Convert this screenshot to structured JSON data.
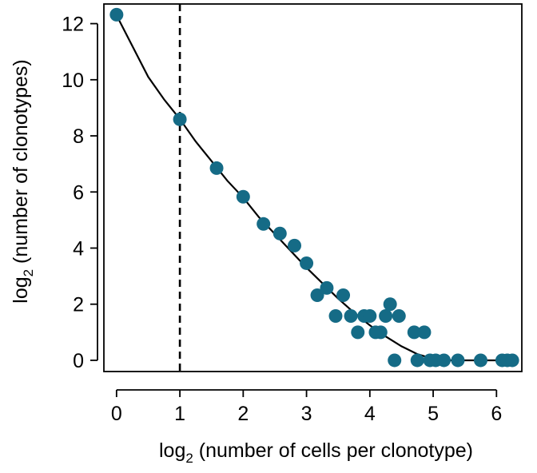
{
  "chart_data": {
    "type": "scatter",
    "title": "",
    "xlabel": {
      "prefix": "log",
      "subscript": "2",
      "rest": " (number of cells per clonotype)"
    },
    "ylabel": {
      "prefix": "log",
      "subscript": "2",
      "rest": " (number of clonotypes)"
    },
    "xlim": [
      -0.2,
      6.4
    ],
    "ylim": [
      -0.4,
      12.7
    ],
    "xticks": [
      0,
      1,
      2,
      3,
      4,
      5,
      6
    ],
    "yticks": [
      0,
      2,
      4,
      6,
      8,
      10,
      12
    ],
    "grid": false,
    "legend": "none",
    "reference_line": {
      "x": 1,
      "style": "dashed"
    },
    "point_color": "#156b86",
    "fit_color": "#000000",
    "points": [
      [
        0.0,
        12.32
      ],
      [
        1.0,
        8.59
      ],
      [
        1.58,
        6.85
      ],
      [
        2.0,
        5.83
      ],
      [
        2.32,
        4.86
      ],
      [
        2.58,
        4.52
      ],
      [
        2.81,
        4.09
      ],
      [
        3.0,
        3.46
      ],
      [
        3.17,
        2.32
      ],
      [
        3.32,
        2.58
      ],
      [
        3.46,
        1.58
      ],
      [
        3.58,
        2.32
      ],
      [
        3.7,
        1.58
      ],
      [
        3.81,
        1.0
      ],
      [
        3.91,
        1.58
      ],
      [
        4.0,
        1.58
      ],
      [
        4.09,
        1.0
      ],
      [
        4.17,
        1.0
      ],
      [
        4.25,
        1.58
      ],
      [
        4.32,
        2.0
      ],
      [
        4.39,
        0.0
      ],
      [
        4.46,
        1.58
      ],
      [
        4.7,
        1.0
      ],
      [
        4.75,
        0.0
      ],
      [
        4.86,
        1.0
      ],
      [
        4.95,
        0.0
      ],
      [
        5.04,
        0.0
      ],
      [
        5.17,
        0.0
      ],
      [
        5.39,
        0.0
      ],
      [
        5.75,
        0.0
      ],
      [
        6.09,
        0.0
      ],
      [
        6.17,
        0.0
      ],
      [
        6.25,
        0.0
      ]
    ],
    "fit_curve": [
      [
        0.0,
        12.3
      ],
      [
        0.25,
        11.2
      ],
      [
        0.5,
        10.1
      ],
      [
        0.75,
        9.3
      ],
      [
        1.0,
        8.6
      ],
      [
        1.25,
        7.8
      ],
      [
        1.5,
        7.1
      ],
      [
        1.75,
        6.4
      ],
      [
        2.0,
        5.8
      ],
      [
        2.25,
        5.1
      ],
      [
        2.5,
        4.5
      ],
      [
        2.75,
        3.9
      ],
      [
        3.0,
        3.3
      ],
      [
        3.25,
        2.75
      ],
      [
        3.5,
        2.2
      ],
      [
        3.75,
        1.7
      ],
      [
        4.0,
        1.25
      ],
      [
        4.25,
        0.85
      ],
      [
        4.5,
        0.5
      ],
      [
        4.75,
        0.22
      ],
      [
        5.0,
        0.05
      ],
      [
        5.25,
        0.0
      ],
      [
        5.5,
        0.0
      ],
      [
        5.75,
        0.0
      ],
      [
        6.0,
        0.0
      ],
      [
        6.25,
        0.0
      ]
    ]
  }
}
